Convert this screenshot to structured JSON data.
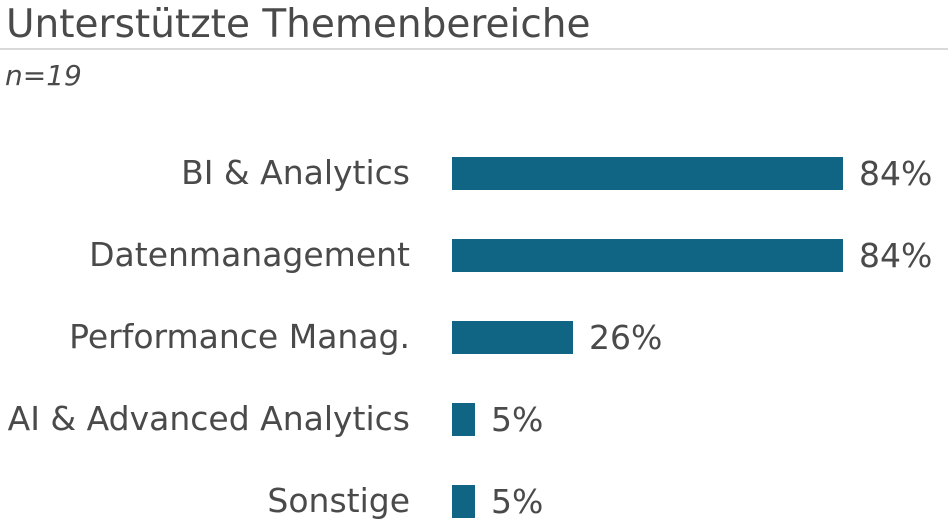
{
  "header": {
    "title": "Unterstützte Themenbereiche",
    "subtitle": "n=19"
  },
  "colors": {
    "bar": "#0f6583",
    "text": "#4a4a4a",
    "divider": "#d9d9d9",
    "background": "#ffffff"
  },
  "chart_data": {
    "type": "bar",
    "orientation": "horizontal",
    "title": "Unterstützte Themenbereiche",
    "subtitle": "n=19",
    "categories": [
      "BI & Analytics",
      "Datenmanagement",
      "Performance Manag.",
      "AI & Advanced Analytics",
      "Sonstige"
    ],
    "values": [
      84,
      84,
      26,
      5,
      5
    ],
    "value_labels": [
      "84%",
      "84%",
      "26%",
      "5%",
      "5%"
    ],
    "unit": "%",
    "xlim": [
      0,
      100
    ],
    "bar_color": "#0f6583",
    "grid": false,
    "legend": false,
    "value_label_position": "outside-end"
  }
}
